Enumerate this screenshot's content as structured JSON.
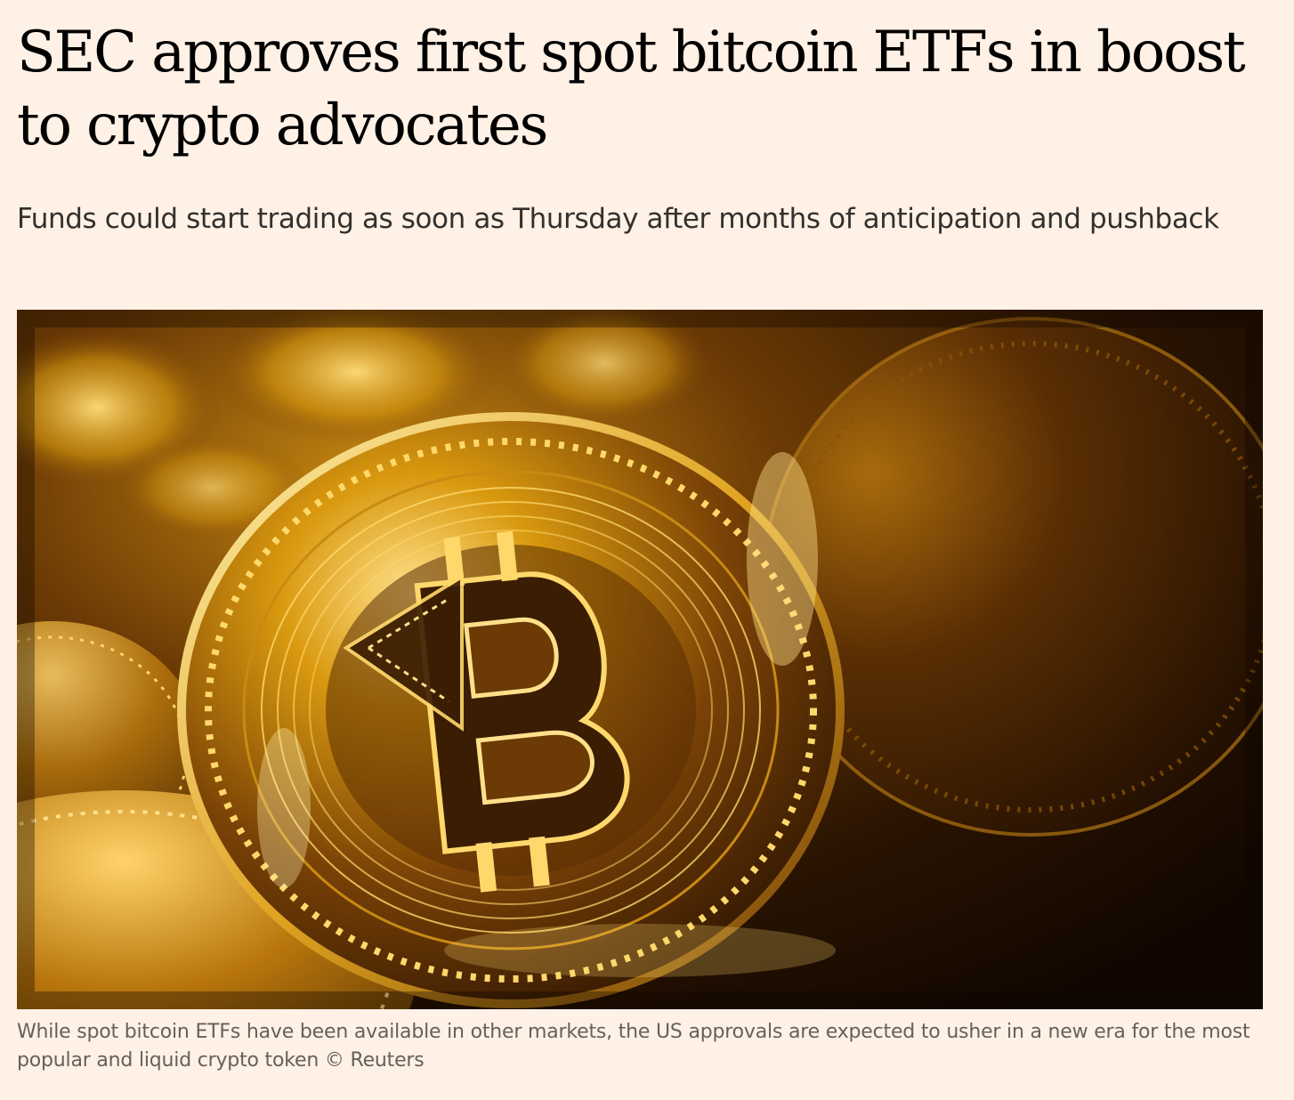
{
  "article": {
    "headline": "SEC approves first spot bitcoin ETFs in boost to crypto advocates",
    "standfirst": "Funds could start trading as soon as Thursday after months of anticipation and pushback",
    "image": {
      "subject": "gold-bitcoin-coins",
      "caption": "While spot bitcoin ETFs have been available in other markets, the US approvals are expected to usher in a new era for the most popular and liquid crypto token",
      "credit": "© Reuters"
    }
  },
  "colors": {
    "page_background": "#fff1e5",
    "headline_text": "#000000",
    "standfirst_text": "#33302e",
    "caption_text": "#66605c",
    "gold_highlight": "#ffd86b",
    "gold_mid": "#c98a12",
    "gold_dark": "#3a1d03"
  }
}
